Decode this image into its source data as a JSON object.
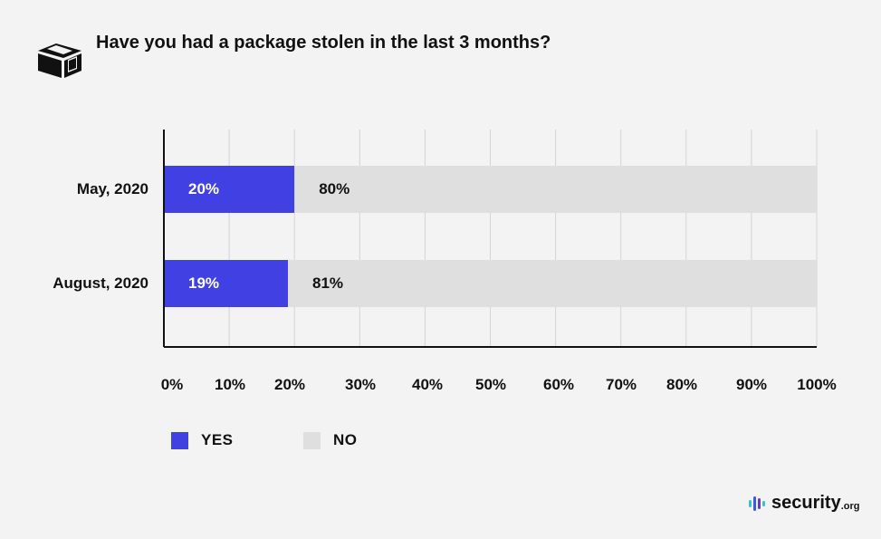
{
  "title": "Have you had a package stolen in the last 3 months?",
  "legend": {
    "yes_label": "YES",
    "no_label": "NO"
  },
  "brand": {
    "name": "security",
    "tld": ".org"
  },
  "colors": {
    "yes": "#4040e3",
    "no": "#dfdfdf",
    "background": "#f3f3f3",
    "grid": "#d4d4d4",
    "axis": "#111111"
  },
  "icons": {
    "title": "package-box-icon",
    "brand": "security-logo-icon"
  },
  "chart_data": {
    "type": "bar",
    "orientation": "horizontal",
    "stacked": true,
    "title": "Have you had a package stolen in the last 3 months?",
    "categories": [
      "May, 2020",
      "August, 2020"
    ],
    "series": [
      {
        "name": "YES",
        "values": [
          20,
          19
        ],
        "labels": [
          "20%",
          "19%"
        ],
        "color": "#4040e3"
      },
      {
        "name": "NO",
        "values": [
          80,
          81
        ],
        "labels": [
          "80%",
          "81%"
        ],
        "color": "#dfdfdf"
      }
    ],
    "xlim": [
      0,
      100
    ],
    "xticks": [
      0,
      10,
      20,
      30,
      40,
      50,
      60,
      70,
      80,
      90,
      100
    ],
    "xtick_labels": [
      "0%",
      "10%",
      "20%",
      "30%",
      "40%",
      "50%",
      "60%",
      "70%",
      "80%",
      "90%",
      "100%"
    ],
    "xlabel": "",
    "ylabel": "",
    "grid": true,
    "legend_position": "bottom-left"
  }
}
